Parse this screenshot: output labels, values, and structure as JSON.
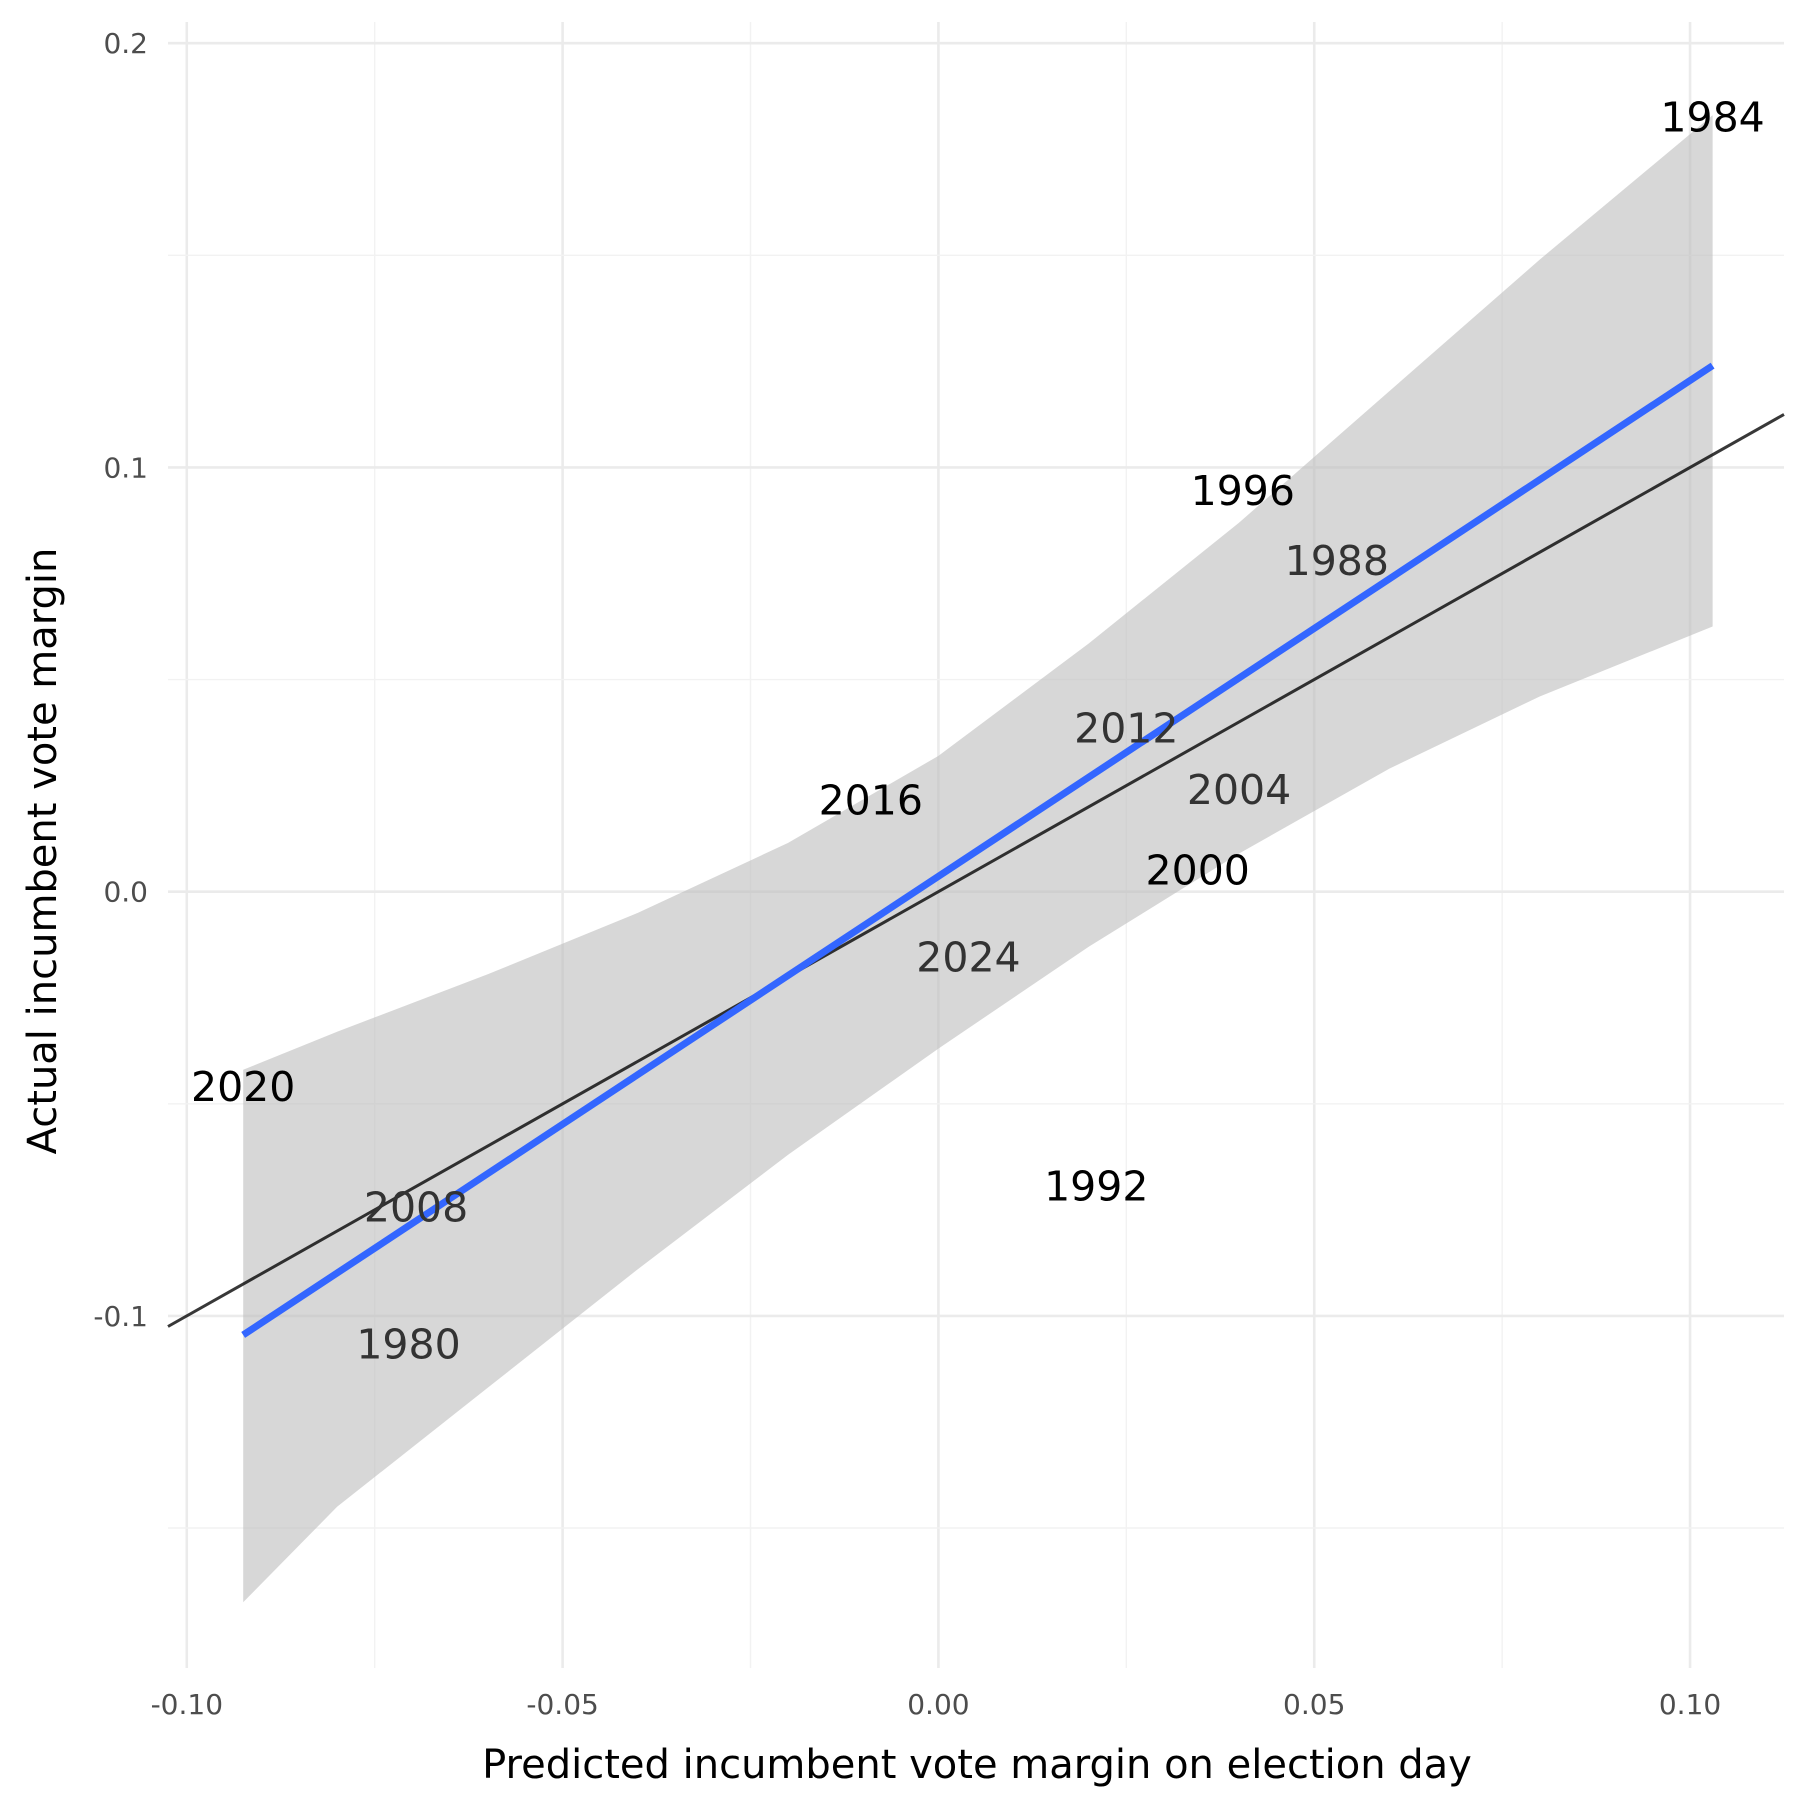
{
  "chart_data": {
    "type": "scatter",
    "xlabel": "Predicted incumbent vote margin on election day",
    "ylabel": "Actual incumbent vote margin",
    "xlim": [
      -0.1025,
      0.1125
    ],
    "ylim": [
      -0.183,
      0.205
    ],
    "x_ticks": [
      -0.1,
      -0.05,
      0.0,
      0.05,
      0.1
    ],
    "x_tick_labels": [
      "-0.10",
      "-0.05",
      "0.00",
      "0.05",
      "0.10"
    ],
    "y_ticks": [
      -0.1,
      0.0,
      0.1,
      0.2
    ],
    "y_tick_labels": [
      "-0.1",
      "0.0",
      "0.1",
      "0.2"
    ],
    "grid": true,
    "points": [
      {
        "label": "1980",
        "x": -0.0705,
        "y": -0.1068,
        "color": "#333333"
      },
      {
        "label": "1984",
        "x": 0.103,
        "y": 0.1825,
        "color": "#000000"
      },
      {
        "label": "1988",
        "x": 0.053,
        "y": 0.078,
        "color": "#333333"
      },
      {
        "label": "1992",
        "x": 0.021,
        "y": -0.0695,
        "color": "#000000"
      },
      {
        "label": "1996",
        "x": 0.0405,
        "y": 0.0945,
        "color": "#000000"
      },
      {
        "label": "2000",
        "x": 0.0345,
        "y": 0.005,
        "color": "#000000"
      },
      {
        "label": "2004",
        "x": 0.04,
        "y": 0.024,
        "color": "#333333"
      },
      {
        "label": "2008",
        "x": -0.0695,
        "y": -0.0745,
        "color": "#333333"
      },
      {
        "label": "2012",
        "x": 0.025,
        "y": 0.0385,
        "color": "#333333"
      },
      {
        "label": "2016",
        "x": -0.009,
        "y": 0.0215,
        "color": "#000000"
      },
      {
        "label": "2020",
        "x": -0.0925,
        "y": -0.046,
        "color": "#000000"
      },
      {
        "label": "2024",
        "x": 0.004,
        "y": -0.0155,
        "color": "#333333"
      }
    ],
    "identity_line": {
      "x": [
        -0.1025,
        0.1125
      ],
      "y": [
        -0.1025,
        0.1125
      ],
      "color": "#000000"
    },
    "fit_line": {
      "x": [
        -0.0925,
        0.103
      ],
      "y": [
        -0.1045,
        0.124
      ],
      "color": "#3366ff"
    },
    "confidence_band": {
      "color": "#bebebe",
      "x": [
        -0.0925,
        -0.08,
        -0.06,
        -0.04,
        -0.02,
        0.0,
        0.02,
        0.04,
        0.06,
        0.08,
        0.103
      ],
      "lower": [
        -0.1675,
        -0.145,
        -0.117,
        -0.089,
        -0.062,
        -0.037,
        -0.013,
        0.009,
        0.029,
        0.046,
        0.0625
      ],
      "upper": [
        -0.042,
        -0.033,
        -0.0195,
        -0.005,
        0.0115,
        0.032,
        0.0585,
        0.087,
        0.118,
        0.149,
        0.183
      ]
    }
  }
}
